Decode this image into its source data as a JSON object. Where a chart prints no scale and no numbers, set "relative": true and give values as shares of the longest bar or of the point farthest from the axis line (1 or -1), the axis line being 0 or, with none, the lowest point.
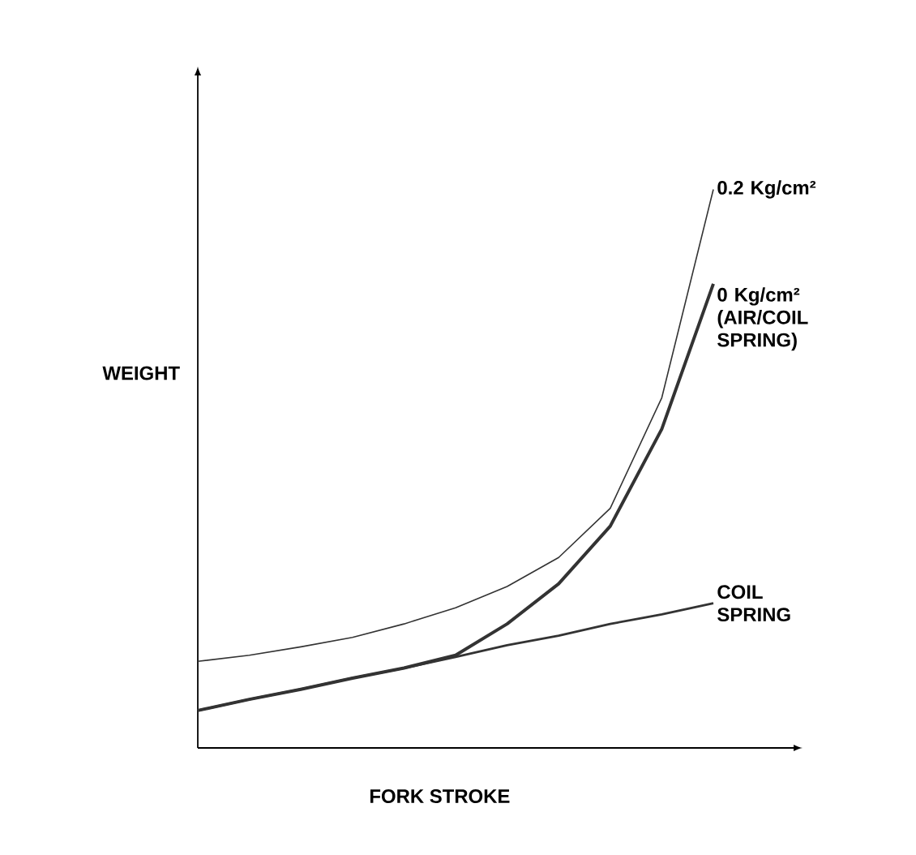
{
  "chart_data": {
    "type": "line",
    "relative": true,
    "xlabel": "FORK STROKE",
    "ylabel": "WEIGHT",
    "categories": [
      null,
      null,
      null,
      null,
      null,
      null,
      null,
      null,
      null,
      null,
      null
    ],
    "series": [
      {
        "name": "0.2 Kg/cm²",
        "color": "#333333",
        "values": [
          0.155,
          0.166,
          0.181,
          0.198,
          0.222,
          0.251,
          0.289,
          0.341,
          0.429,
          0.627,
          1
        ]
      },
      {
        "name": "0 Kg/cm² (AIR/COIL SPRING)",
        "color": "#333333",
        "values": [
          0.067,
          0.087,
          0.105,
          0.125,
          0.143,
          0.166,
          0.222,
          0.294,
          0.397,
          0.571,
          0.831
        ]
      },
      {
        "name": "COIL SPRING",
        "color": "#333333",
        "values": [
          0.067,
          0.087,
          0.105,
          0.125,
          0.143,
          0.163,
          0.184,
          0.201,
          0.222,
          0.239,
          0.259
        ]
      }
    ],
    "marker": "none",
    "line_style": "solid"
  }
}
